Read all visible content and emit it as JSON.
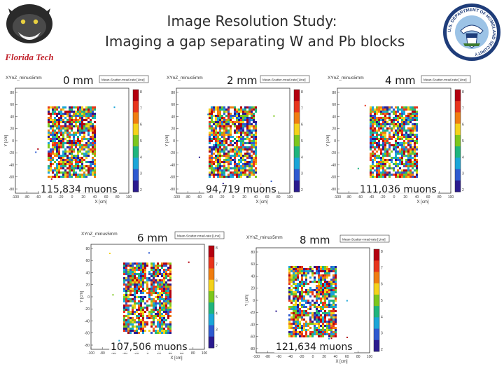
{
  "header": {
    "title_line1": "Image Resolution Study:",
    "title_line2": "Imaging a gap separating W and Pb blocks",
    "left_logo_text": "Florida Tech",
    "right_logo_text": "U.S. DEPARTMENT OF HOMELAND SECURITY"
  },
  "plots": [
    {
      "gap": "0 mm",
      "muons": "115,834 muons",
      "hist_name": "XYnZ_minus5mm",
      "stats_text": "Mean-Scatter-mrad-rate [Line]"
    },
    {
      "gap": "2 mm",
      "muons": "94,719 muons",
      "hist_name": "XYnZ_minus5mm",
      "stats_text": "Mean-Scatter-mrad-rate [Line]"
    },
    {
      "gap": "4 mm",
      "muons": "111,036 muons",
      "hist_name": "XYnZ_minus5mm",
      "stats_text": "Mean-Scatter-mrad-rate [Line]"
    },
    {
      "gap": "6 mm",
      "muons": "107,506 muons",
      "hist_name": "XYnZ_minus5mm",
      "stats_text": "Mean-Scatter-mrad-rate [Line]"
    },
    {
      "gap": "8 mm",
      "muons": "121,634 muons",
      "hist_name": "XYnZ_minus5mm",
      "stats_text": "Mean-Scatter-mrad-rate [Line]"
    }
  ],
  "axes": {
    "xlabel": "X [cm]",
    "ylabel": "Y [cm]",
    "x_ticks": [
      "-100",
      "-80",
      "-60",
      "-40",
      "-20",
      "0",
      "20",
      "40",
      "60",
      "80",
      "100"
    ],
    "y_ticks": [
      "80",
      "60",
      "40",
      "20",
      "0",
      "-20",
      "-40",
      "-60",
      "-80"
    ],
    "colorbar_ticks": [
      "8",
      "7",
      "6",
      "5",
      "4",
      "3",
      "2"
    ]
  },
  "colors": {
    "colorbar": [
      "#b4000e",
      "#e8341c",
      "#f07d10",
      "#f4d21a",
      "#7cc71c",
      "#1fb57d",
      "#1aa6d8",
      "#2d5ad0",
      "#2a1a8f"
    ]
  }
}
